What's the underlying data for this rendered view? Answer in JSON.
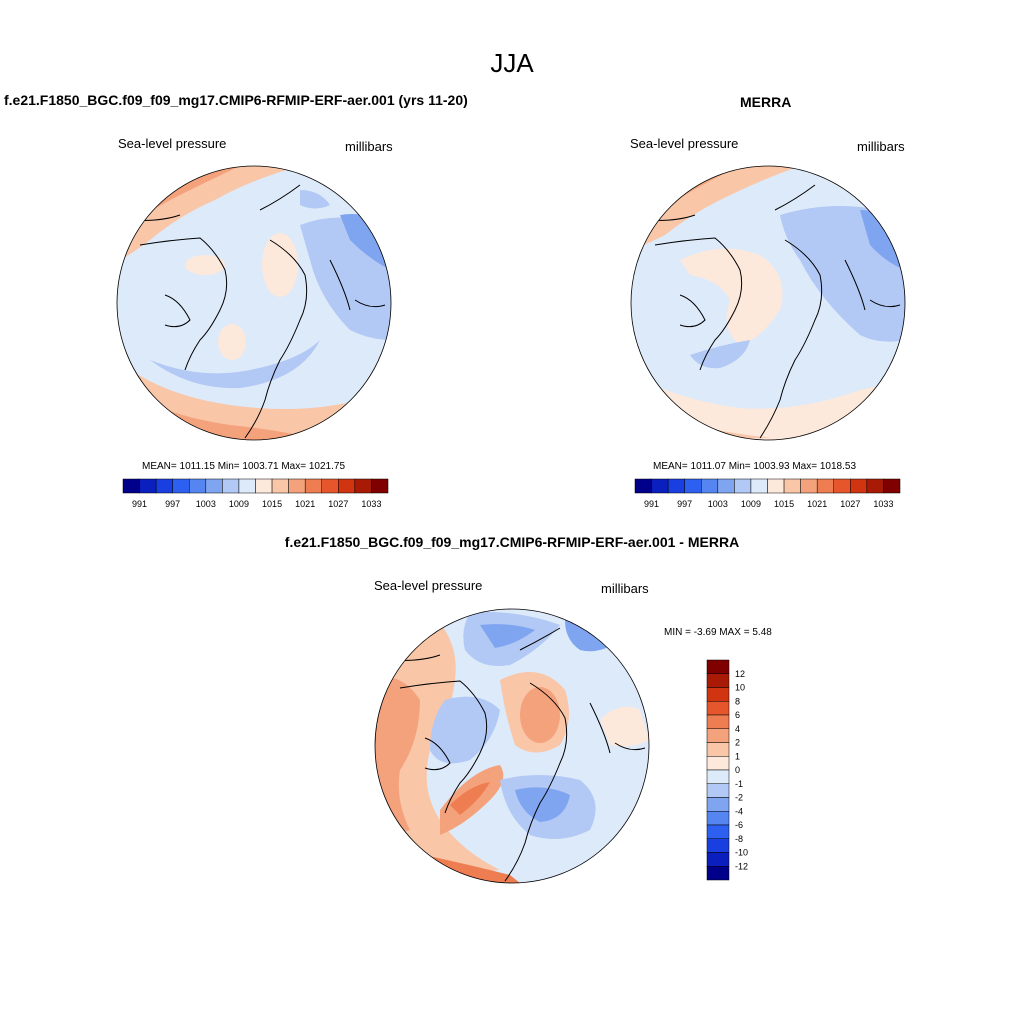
{
  "figure": {
    "season": "JJA"
  },
  "panels": [
    {
      "title": "f.e21.F1850_BGC.f09_f09_mg17.CMIP6-RFMIP-ERF-aer.001 (yrs 11-20)",
      "variable": "Sea-level pressure",
      "units": "millibars",
      "stats": "MEAN= 1011.15  Min= 1003.71  Max= 1021.75"
    },
    {
      "title": "MERRA",
      "variable": "Sea-level pressure",
      "units": "millibars",
      "stats": "MEAN= 1011.07  Min= 1003.93  Max= 1018.53"
    },
    {
      "title": "f.e21.F1850_BGC.f09_f09_mg17.CMIP6-RFMIP-ERF-aer.001 - MERRA",
      "variable": "Sea-level pressure",
      "units": "millibars",
      "stats": "MIN =  -3.69 MAX =   5.48"
    }
  ],
  "colorbar_abs": {
    "colors": [
      "#00008b",
      "#0a1fbd",
      "#1a3fe0",
      "#2d60f0",
      "#5585f0",
      "#7fa5f0",
      "#b2c8f5",
      "#ddeafa",
      "#fde8dc",
      "#f9c6a8",
      "#f4a27c",
      "#ee7e52",
      "#e5562c",
      "#d13410",
      "#a81a06",
      "#800000"
    ],
    "tick_labels": [
      "991",
      "997",
      "1003",
      "1009",
      "1015",
      "1021",
      "1027",
      "1033"
    ]
  },
  "colorbar_diff": {
    "colors": [
      "#800000",
      "#a81a06",
      "#d13410",
      "#e5562c",
      "#ee7e52",
      "#f4a27c",
      "#f9c6a8",
      "#fde8dc",
      "#ddeafa",
      "#b2c8f5",
      "#7fa5f0",
      "#5585f0",
      "#2d60f0",
      "#1a3fe0",
      "#0a1fbd",
      "#00008b"
    ],
    "tick_labels": [
      "12",
      "10",
      "8",
      "6",
      "4",
      "2",
      "1",
      "0",
      "-1",
      "-2",
      "-4",
      "-6",
      "-8",
      "-10",
      "-12"
    ]
  }
}
